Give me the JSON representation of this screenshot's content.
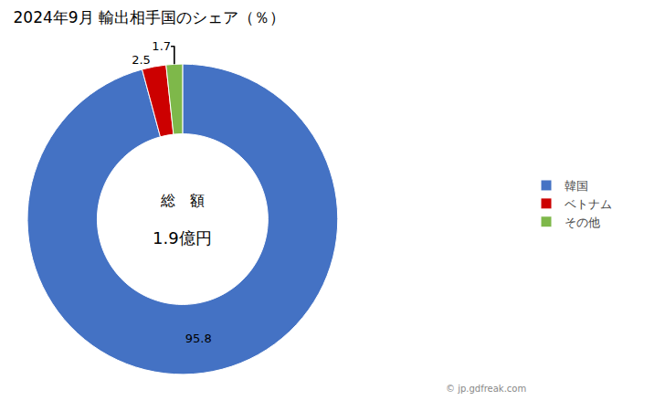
{
  "chart_data": {
    "type": "pie",
    "title": "2024年9月 輸出相手国のシェア（％）",
    "categories": [
      "韓国",
      "ベトナム",
      "その他"
    ],
    "values": [
      95.8,
      2.5,
      1.7
    ],
    "colors": [
      "#4472c4",
      "#cc0000",
      "#7eb84a"
    ],
    "data_labels": true,
    "legend": "right",
    "annotations": [
      "総　額",
      "1.9億円",
      "© jp.gdfreak.com"
    ]
  }
}
